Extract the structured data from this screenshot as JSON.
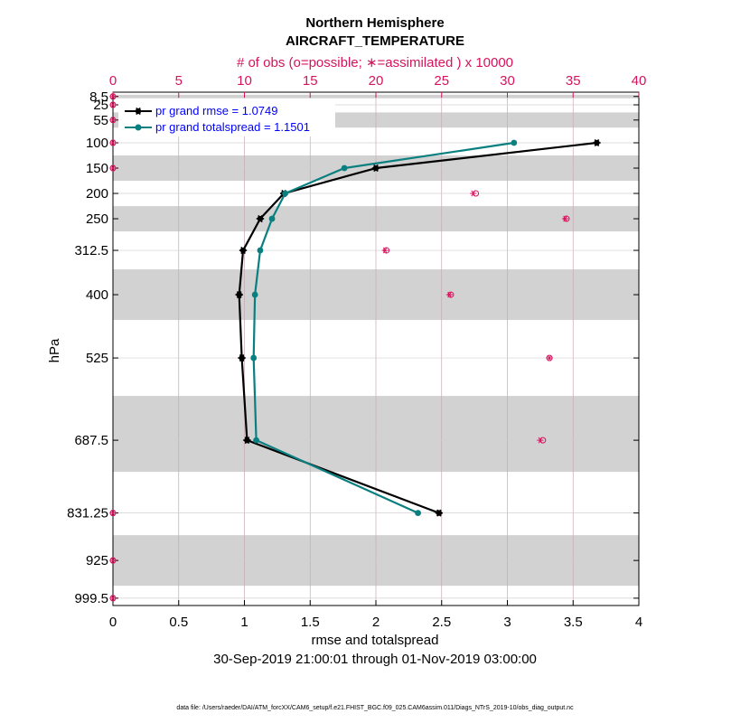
{
  "chart_data": {
    "type": "line",
    "title": "Northern Hemisphere",
    "subtitle": "AIRCRAFT_TEMPERATURE",
    "top_axis_label": "# of obs (o=possible; ∗=assimilated ) x 10000",
    "xlabel": "rmse and totalspread",
    "date_range": "30-Sep-2019 21:00:01 through 01-Nov-2019 03:00:00",
    "ylabel": "hPa",
    "xlim": [
      0,
      4
    ],
    "xticks": [
      "0",
      "0.5",
      "1",
      "1.5",
      "2",
      "2.5",
      "3",
      "3.5",
      "4"
    ],
    "top_xlim": [
      0,
      40
    ],
    "top_xticks": [
      "0",
      "5",
      "10",
      "15",
      "20",
      "25",
      "30",
      "35",
      "40"
    ],
    "levels": [
      8.5,
      25,
      55,
      100,
      150,
      200,
      250,
      312.5,
      400,
      525,
      687.5,
      831.25,
      925,
      999.5
    ],
    "level_labels": [
      "8.5",
      "25",
      "55",
      "100",
      "150",
      "200",
      "250",
      "312.5",
      "400",
      "525",
      "687.5",
      "831.25",
      "925",
      "999.5"
    ],
    "shaded_bands": [
      [
        5,
        12
      ],
      [
        40,
        70
      ],
      [
        125,
        175
      ],
      [
        225,
        275
      ],
      [
        350,
        450
      ],
      [
        600,
        750
      ],
      [
        875,
        975
      ]
    ],
    "series": [
      {
        "name": "pr grand rmse",
        "legend": "pr grand rmse = 1.0749",
        "color": "#000000",
        "marker": "star",
        "points": [
          [
            3.68,
            100
          ],
          [
            2.0,
            150
          ],
          [
            1.3,
            200
          ],
          [
            1.12,
            250
          ],
          [
            0.99,
            312.5
          ],
          [
            0.96,
            400
          ],
          [
            0.98,
            525
          ],
          [
            1.02,
            687.5
          ],
          [
            2.48,
            831.25
          ]
        ]
      },
      {
        "name": "pr grand totalspread",
        "legend": "pr grand totalspread = 1.1501",
        "color": "#0a7f80",
        "marker": "circle",
        "points": [
          [
            3.05,
            100
          ],
          [
            1.76,
            150
          ],
          [
            1.31,
            200
          ],
          [
            1.21,
            250
          ],
          [
            1.12,
            312.5
          ],
          [
            1.08,
            400
          ],
          [
            1.07,
            525
          ],
          [
            1.09,
            687.5
          ],
          [
            2.32,
            831.25
          ]
        ]
      }
    ],
    "obs_counts": {
      "scale": "x 10000",
      "possible": [
        [
          0,
          8.5
        ],
        [
          0,
          25
        ],
        [
          0,
          55
        ],
        [
          0,
          100
        ],
        [
          0,
          150
        ],
        [
          27.6,
          200
        ],
        [
          34.5,
          250
        ],
        [
          20.8,
          312.5
        ],
        [
          25.7,
          400
        ],
        [
          33.2,
          525
        ],
        [
          32.7,
          687.5
        ],
        [
          0,
          831.25
        ],
        [
          0,
          925
        ],
        [
          0,
          999.5
        ]
      ],
      "assimilated": [
        [
          0,
          8.5
        ],
        [
          0,
          25
        ],
        [
          0,
          55
        ],
        [
          0,
          100
        ],
        [
          0,
          150
        ],
        [
          27.4,
          200
        ],
        [
          34.4,
          250
        ],
        [
          20.7,
          312.5
        ],
        [
          25.6,
          400
        ],
        [
          33.2,
          525
        ],
        [
          32.5,
          687.5
        ],
        [
          0,
          831.25
        ],
        [
          0,
          925
        ],
        [
          0,
          999.5
        ]
      ]
    },
    "colors": {
      "accent": "#d6135c",
      "band": "#d2d2d2",
      "legend_text": "#0000ff"
    }
  },
  "footer": {
    "data_file": "data file: /Users/raeder/DAI/ATM_forcXX/CAM6_setup/f.e21.FHIST_BGC.f09_025.CAM6assim.011/Diags_NTrS_2019-10/obs_diag_output.nc"
  }
}
